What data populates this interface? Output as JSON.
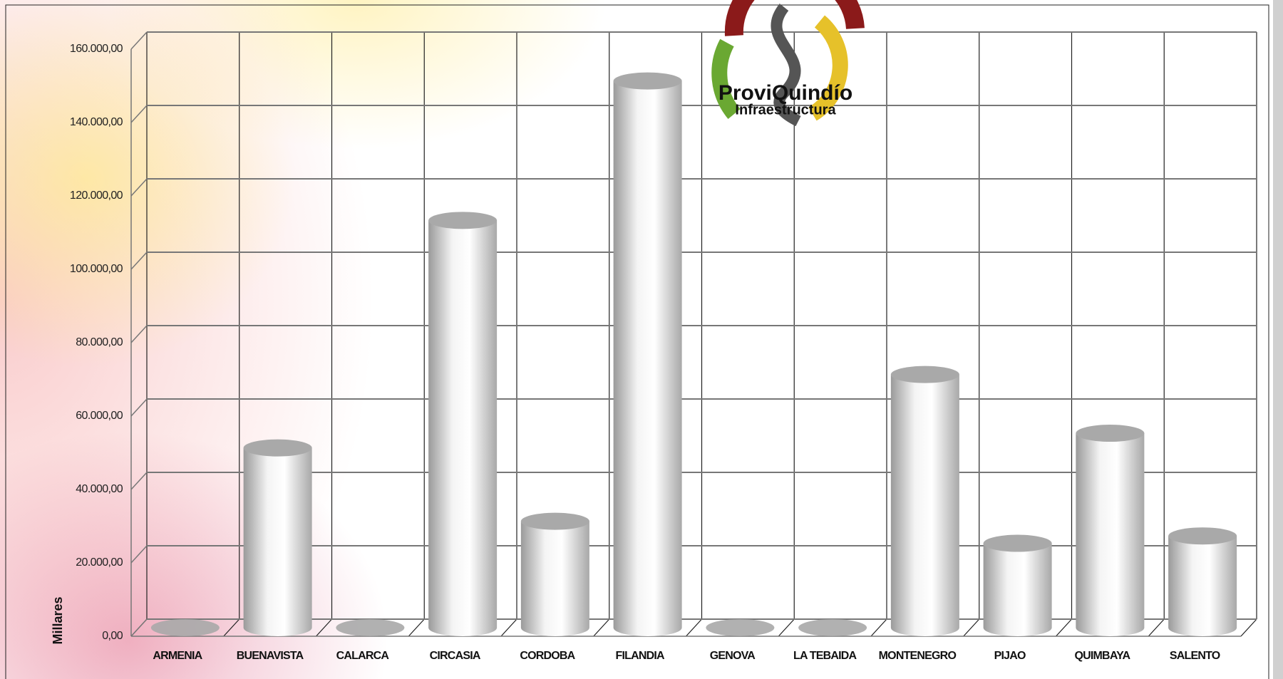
{
  "chart_data": {
    "type": "bar",
    "y_label": "Millares",
    "categories": [
      "ARMENIA",
      "BUENAVISTA",
      "CALARCA",
      "CIRCASIA",
      "CORDOBA",
      "FILANDIA",
      "GENOVA",
      "LA TEBAIDA",
      "MONTENEGRO",
      "PIJAO",
      "QUIMBAYA",
      "SALENTO"
    ],
    "values": [
      0,
      49000,
      0,
      111000,
      29000,
      149000,
      0,
      0,
      69000,
      23000,
      53000,
      25000
    ],
    "color": "#d9d9d9",
    "ylim": [
      0,
      160000
    ],
    "yticks": [
      {
        "value": 0,
        "label": "0,00"
      },
      {
        "value": 20000,
        "label": "20.000,00"
      },
      {
        "value": 40000,
        "label": "40.000,00"
      },
      {
        "value": 60000,
        "label": "60.000,00"
      },
      {
        "value": 80000,
        "label": "80.000,00"
      },
      {
        "value": 100000,
        "label": "100.000,00"
      },
      {
        "value": 120000,
        "label": "120.000,00"
      },
      {
        "value": 140000,
        "label": "140.000,00"
      },
      {
        "value": 160000,
        "label": "160.000,00"
      }
    ],
    "grid": true
  },
  "logo": {
    "name": "ProviQuindío",
    "subtitle": "Infraestructura"
  }
}
